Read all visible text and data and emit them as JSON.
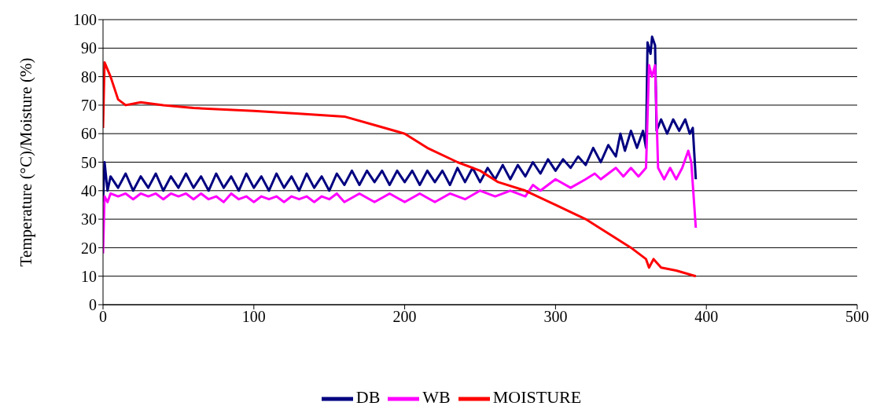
{
  "chart_data": {
    "type": "line",
    "ylabel": "Temperature (°C)/Moisture (%)",
    "xlim": [
      0,
      500
    ],
    "xticks": [
      0,
      100,
      200,
      300,
      400,
      500
    ],
    "ylim": [
      0,
      100
    ],
    "yticks": [
      0,
      10,
      20,
      30,
      40,
      50,
      60,
      70,
      80,
      90,
      100
    ],
    "grid": "y",
    "legend": "bottom",
    "marker": "none",
    "line_style": "solid",
    "series": [
      {
        "name": "DB",
        "color": "#000080",
        "x": [
          0,
          1,
          3,
          5,
          10,
          15,
          20,
          25,
          30,
          35,
          40,
          45,
          50,
          55,
          60,
          65,
          70,
          75,
          80,
          85,
          90,
          95,
          100,
          105,
          110,
          115,
          120,
          125,
          130,
          135,
          140,
          145,
          150,
          155,
          160,
          165,
          170,
          175,
          180,
          185,
          190,
          195,
          200,
          205,
          210,
          215,
          220,
          225,
          230,
          235,
          240,
          245,
          250,
          255,
          260,
          265,
          270,
          275,
          280,
          285,
          290,
          295,
          300,
          305,
          310,
          315,
          320,
          325,
          330,
          335,
          340,
          343,
          346,
          350,
          354,
          358,
          360,
          361,
          363,
          364,
          366,
          367,
          370,
          374,
          378,
          382,
          386,
          389,
          391,
          393
        ],
        "values": [
          36,
          50,
          40,
          45,
          41,
          46,
          40,
          45,
          41,
          46,
          40,
          45,
          41,
          46,
          41,
          45,
          40,
          46,
          41,
          45,
          40,
          46,
          41,
          45,
          40,
          46,
          41,
          45,
          40,
          46,
          41,
          45,
          40,
          46,
          42,
          47,
          42,
          47,
          43,
          47,
          42,
          47,
          43,
          47,
          42,
          47,
          43,
          47,
          42,
          48,
          43,
          48,
          43,
          48,
          44,
          49,
          44,
          49,
          45,
          50,
          46,
          51,
          47,
          51,
          48,
          52,
          49,
          55,
          50,
          56,
          52,
          60,
          54,
          61,
          55,
          61,
          55,
          92,
          88,
          94,
          91,
          61,
          65,
          60,
          65,
          61,
          65,
          60,
          62,
          44
        ]
      },
      {
        "name": "WB",
        "color": "#ff00ff",
        "x": [
          0,
          1,
          3,
          5,
          10,
          15,
          20,
          25,
          30,
          35,
          40,
          45,
          50,
          55,
          60,
          65,
          70,
          75,
          80,
          85,
          90,
          95,
          100,
          105,
          110,
          115,
          120,
          125,
          130,
          135,
          140,
          145,
          150,
          155,
          160,
          170,
          180,
          190,
          200,
          210,
          220,
          230,
          240,
          250,
          260,
          270,
          280,
          285,
          290,
          300,
          310,
          320,
          326,
          330,
          340,
          345,
          350,
          355,
          360,
          362,
          364,
          366,
          368,
          372,
          376,
          380,
          384,
          388,
          390,
          393
        ],
        "values": [
          18,
          38,
          36,
          39,
          38,
          39,
          37,
          39,
          38,
          39,
          37,
          39,
          38,
          39,
          37,
          39,
          37,
          38,
          36,
          39,
          37,
          38,
          36,
          38,
          37,
          38,
          36,
          38,
          37,
          38,
          36,
          38,
          37,
          39,
          36,
          39,
          36,
          39,
          36,
          39,
          36,
          39,
          37,
          40,
          38,
          40,
          38,
          42,
          40,
          44,
          41,
          44,
          46,
          44,
          48,
          45,
          48,
          45,
          48,
          84,
          80,
          84,
          48,
          44,
          48,
          44,
          48,
          54,
          50,
          27
        ]
      },
      {
        "name": "MOISTURE",
        "color": "#ff0000",
        "x": [
          0,
          1,
          5,
          10,
          15,
          25,
          40,
          60,
          100,
          130,
          160,
          180,
          200,
          215,
          235,
          250,
          262,
          280,
          300,
          320,
          335,
          350,
          360,
          362,
          365,
          370,
          380,
          393
        ],
        "values": [
          62,
          85,
          80,
          72,
          70,
          71,
          70,
          69,
          68,
          67,
          66,
          63,
          60,
          55,
          50,
          47,
          43,
          40,
          35,
          30,
          25,
          20,
          16,
          13,
          16,
          13,
          12,
          10
        ]
      }
    ]
  }
}
